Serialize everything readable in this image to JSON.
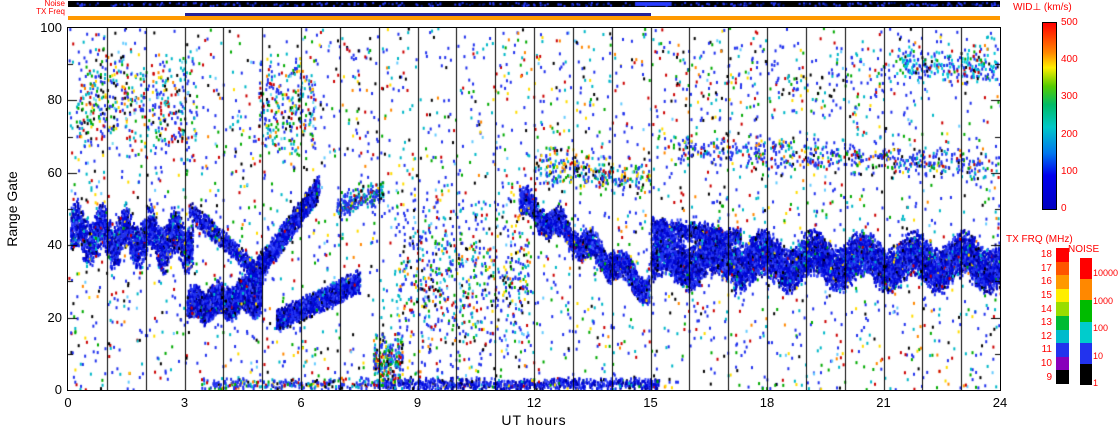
{
  "strip": {
    "noise_label": "Noise",
    "txfreq_label": "TX Freq"
  },
  "axes": {
    "ylabel": "Range Gate",
    "xlabel": "UT hours",
    "x_ticks": [
      "0",
      "3",
      "6",
      "9",
      "12",
      "15",
      "18",
      "21",
      "24"
    ],
    "y_ticks": [
      "100",
      "80",
      "60",
      "40",
      "20",
      "0"
    ]
  },
  "colorbars": {
    "wid": {
      "title": "WID⊥ (km/s)",
      "ticks": [
        "500",
        "400",
        "300",
        "200",
        "100",
        "0"
      ],
      "gradient": [
        "#ff0000 0%",
        "#ff4400 8%",
        "#ff8800 16%",
        "#ffee00 24%",
        "#55cc00 34%",
        "#00bb66 44%",
        "#00c8c8 56%",
        "#0077ee 70%",
        "#0000ee 82%",
        "#0000c0 100%"
      ]
    },
    "txfrq": {
      "title": "TX FRQ (MHz)",
      "labels": [
        "18",
        "17",
        "16",
        "15",
        "14",
        "13",
        "12",
        "11",
        "10",
        "9"
      ],
      "colors": [
        "#ff0000",
        "#ff5500",
        "#ff9900",
        "#ffee00",
        "#99dd00",
        "#00bb33",
        "#00bbcc",
        "#2233ee",
        "#8800bb",
        "#000000"
      ]
    },
    "noise": {
      "title": "NOISE",
      "ticks": [
        "10000",
        "1000",
        "100",
        "10",
        "1"
      ],
      "colors": [
        "#ff0000",
        "#ff8800",
        "#00bb00",
        "#00cccc",
        "#2233ee",
        "#000000"
      ]
    }
  },
  "chart_data": {
    "type": "scatter",
    "title": "",
    "xlabel": "UT hours",
    "ylabel": "Range Gate",
    "xlim": [
      0,
      24
    ],
    "ylim": [
      0,
      100
    ],
    "x_ticks": [
      0,
      3,
      6,
      9,
      12,
      15,
      18,
      21,
      24
    ],
    "x_minor_tick_interval": 1,
    "y_ticks": [
      0,
      20,
      40,
      60,
      80,
      100
    ],
    "grid": "vertical-hourly",
    "color_variable": "WID⊥ (km/s)",
    "color_range": [
      0,
      500
    ],
    "dominant_value_note": "most echoes have low spectral width 0-100 km/s (blue); sparse higher-width points in cyan/green/yellow/red; black = out of range",
    "point_size": [
      2,
      3
    ],
    "palettes": {
      "dense": [
        [
          "#0008d8",
          0.4
        ],
        [
          "#2233f2",
          0.28
        ],
        [
          "#000090",
          0.14
        ],
        [
          "#4455ff",
          0.08
        ],
        [
          "#00b8c8",
          0.03
        ],
        [
          "#000000",
          0.04
        ],
        [
          "#cc0000",
          0.01
        ],
        [
          "#00aa00",
          0.01
        ],
        [
          "#ffdd00",
          0.01
        ]
      ],
      "mixed": [
        [
          "#2233ee",
          0.34
        ],
        [
          "#00b8c8",
          0.2
        ],
        [
          "#00aa00",
          0.12
        ],
        [
          "#cc0000",
          0.1
        ],
        [
          "#000000",
          0.1
        ],
        [
          "#ffdd00",
          0.06
        ],
        [
          "#ff8800",
          0.04
        ],
        [
          "#77ddee",
          0.04
        ]
      ],
      "mixed_sparse": [
        [
          "#2233ee",
          0.4
        ],
        [
          "#00b8c8",
          0.16
        ],
        [
          "#00aa00",
          0.11
        ],
        [
          "#cc0000",
          0.1
        ],
        [
          "#000000",
          0.09
        ],
        [
          "#ffdd00",
          0.06
        ],
        [
          "#ff8800",
          0.04
        ],
        [
          "#66ccff",
          0.04
        ]
      ],
      "mixed_blue": [
        [
          "#2233ee",
          0.55
        ],
        [
          "#00b8c8",
          0.18
        ],
        [
          "#00aa00",
          0.08
        ],
        [
          "#cc0000",
          0.07
        ],
        [
          "#000000",
          0.06
        ],
        [
          "#ffdd00",
          0.03
        ],
        [
          "#ff8800",
          0.03
        ]
      ],
      "cyan_blue": [
        [
          "#00c8d8",
          0.45
        ],
        [
          "#2233ee",
          0.4
        ],
        [
          "#00aa00",
          0.05
        ],
        [
          "#000000",
          0.05
        ],
        [
          "#cc0000",
          0.05
        ]
      ],
      "noise_strip": [
        [
          "#2a3cff",
          0.7
        ],
        [
          "#001488",
          0.3
        ]
      ]
    },
    "bands": [
      {
        "name": "main-band-0-3",
        "x": [
          0.05,
          3.2
        ],
        "y0": 43,
        "y1": 41,
        "half": 7,
        "wiggle": 3,
        "wfreq": 5,
        "n": 2600,
        "palette": "dense"
      },
      {
        "name": "low-blob-3-5",
        "x": [
          3.05,
          4.95
        ],
        "y0": 23,
        "y1": 26,
        "half": 5,
        "wiggle": 1.5,
        "wfreq": 3,
        "n": 2600,
        "palette": "dense"
      },
      {
        "name": "descending-3-5",
        "x": [
          3.1,
          5.0
        ],
        "y0": 50,
        "y1": 31,
        "half": 3,
        "n": 650,
        "palette": "dense"
      },
      {
        "name": "rising-4-6",
        "x": [
          4.4,
          6.45
        ],
        "y0": 26,
        "y1": 56,
        "half": 4,
        "n": 1900,
        "palette": "dense"
      },
      {
        "name": "rising-low-5-7",
        "x": [
          5.35,
          7.5
        ],
        "y0": 19,
        "y1": 30,
        "half": 3.5,
        "n": 1400,
        "palette": "dense"
      },
      {
        "name": "plateau-7-8",
        "x": [
          6.9,
          8.1
        ],
        "y0": 50,
        "y1": 55,
        "half": 4,
        "n": 220,
        "palette": "mixed_blue"
      },
      {
        "name": "descending-11-15",
        "x": [
          11.6,
          14.95
        ],
        "y0": 52,
        "y1": 28,
        "half": 4.5,
        "wiggle": 2,
        "wfreq": 4,
        "n": 2300,
        "palette": "dense"
      },
      {
        "name": "main-band-15-24",
        "x": [
          15.0,
          24.0
        ],
        "y0": 36,
        "y1": 35,
        "half": 7,
        "wiggle": 2.5,
        "wfreq": 7,
        "n": 9500,
        "palette": "dense"
      },
      {
        "name": "top-edge-15-17",
        "x": [
          15.0,
          17.3
        ],
        "y0": 45,
        "y1": 42,
        "half": 3,
        "n": 700,
        "palette": "dense"
      },
      {
        "name": "bottom-strip-8-15",
        "x": [
          7.9,
          15.2
        ],
        "y0": 1.5,
        "y1": 1.5,
        "half": 2,
        "n": 800,
        "palette": "dense"
      },
      {
        "name": "bottom-sparse-3-8",
        "x": [
          3.4,
          7.9
        ],
        "y0": 1.5,
        "y1": 1.5,
        "half": 2,
        "n": 260,
        "palette": "mixed_blue"
      },
      {
        "name": "column-hour-8",
        "x": [
          7.85,
          8.6
        ],
        "y0": 8,
        "y1": 8,
        "half": 8,
        "n": 240,
        "palette": "mixed"
      },
      {
        "name": "upper-cluster-0-3",
        "x": [
          0.2,
          3.3
        ],
        "y0": 80,
        "y1": 78,
        "half": 16,
        "n": 430,
        "palette": "mixed"
      },
      {
        "name": "upper-cluster-5-6",
        "x": [
          4.9,
          6.35
        ],
        "y0": 77,
        "y1": 77,
        "half": 16,
        "n": 260,
        "palette": "mixed"
      },
      {
        "name": "mid-scatter-8-12",
        "x": [
          8.4,
          11.9
        ],
        "y0": 30,
        "y1": 30,
        "half": 28,
        "n": 600,
        "palette": "mixed_sparse"
      },
      {
        "name": "upper-scatter-12-15",
        "x": [
          12.0,
          15.0
        ],
        "y0": 62,
        "y1": 58,
        "half": 6,
        "n": 300,
        "palette": "mixed"
      },
      {
        "name": "upper-line-15-24",
        "x": [
          15.3,
          24.0
        ],
        "y0": 67,
        "y1": 62,
        "half": 5,
        "n": 520,
        "palette": "mixed_blue"
      },
      {
        "name": "upper-right-cluster-21-24",
        "x": [
          21.3,
          23.95
        ],
        "y0": 90,
        "y1": 89,
        "half": 5,
        "n": 230,
        "palette": "cyan_blue"
      },
      {
        "name": "upper-sparse-16-21",
        "x": [
          15.5,
          21.3
        ],
        "y0": 85,
        "y1": 85,
        "half": 12,
        "n": 160,
        "palette": "mixed_sparse"
      }
    ],
    "background": {
      "n": 3200,
      "palette": "mixed_sparse"
    },
    "noise_strip": {
      "bg": "#000000",
      "n": 320,
      "cluster_hours": [
        14.6,
        15.5
      ]
    },
    "tx_strip": {
      "base_color": "#ff9900",
      "alt_color": "#22229a",
      "alt_hours": [
        3,
        15
      ]
    }
  }
}
